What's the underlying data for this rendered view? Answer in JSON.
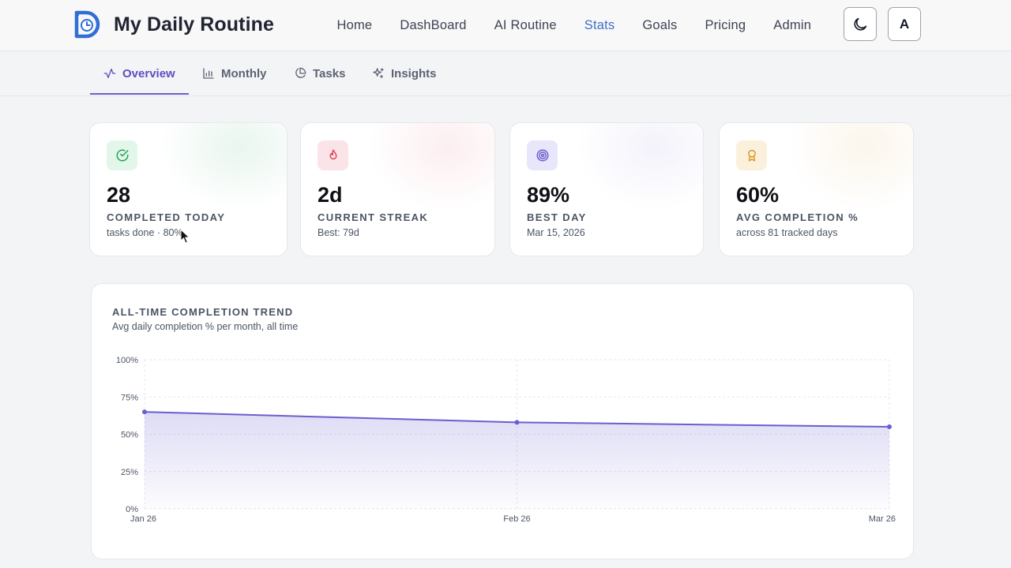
{
  "app": {
    "title": "My Daily Routine",
    "logo_icon": "clock-d-logo-icon",
    "brand_color": "#2f6fd6"
  },
  "nav": {
    "items": [
      {
        "label": "Home",
        "active": false
      },
      {
        "label": "DashBoard",
        "active": false
      },
      {
        "label": "AI Routine",
        "active": false
      },
      {
        "label": "Stats",
        "active": true
      },
      {
        "label": "Goals",
        "active": false
      },
      {
        "label": "Pricing",
        "active": false
      },
      {
        "label": "Admin",
        "active": false
      }
    ],
    "theme_icon": "moon-icon",
    "avatar_initial": "A"
  },
  "tabs": [
    {
      "label": "Overview",
      "icon": "activity-icon",
      "active": true
    },
    {
      "label": "Monthly",
      "icon": "bar-chart-icon",
      "active": false
    },
    {
      "label": "Tasks",
      "icon": "pie-chart-icon",
      "active": false
    },
    {
      "label": "Insights",
      "icon": "sparkles-icon",
      "active": false
    }
  ],
  "stats": [
    {
      "value": "28",
      "label": "COMPLETED TODAY",
      "sub": "tasks done · 80%",
      "icon": "check-circle-icon",
      "accent": "#22a35a"
    },
    {
      "value": "2d",
      "label": "CURRENT STREAK",
      "sub": "Best: 79d",
      "icon": "flame-icon",
      "accent": "#e0455a"
    },
    {
      "value": "89%",
      "label": "BEST DAY",
      "sub": "Mar 15, 2026",
      "icon": "target-icon",
      "accent": "#6a5fcf"
    },
    {
      "value": "60%",
      "label": "AVG COMPLETION %",
      "sub": "across 81 tracked days",
      "icon": "award-icon",
      "accent": "#d99a2b"
    }
  ],
  "trend": {
    "title": "ALL-TIME COMPLETION TREND",
    "subtitle": "Avg daily completion % per month, all time"
  },
  "chart_data": {
    "type": "area",
    "categories": [
      "Jan 26",
      "Feb 26",
      "Mar 26"
    ],
    "values": [
      65,
      58,
      55
    ],
    "yticks": [
      "0%",
      "25%",
      "50%",
      "75%",
      "100%"
    ],
    "ylim": [
      0,
      100
    ],
    "color": "#6a5fcf",
    "grid": true
  }
}
